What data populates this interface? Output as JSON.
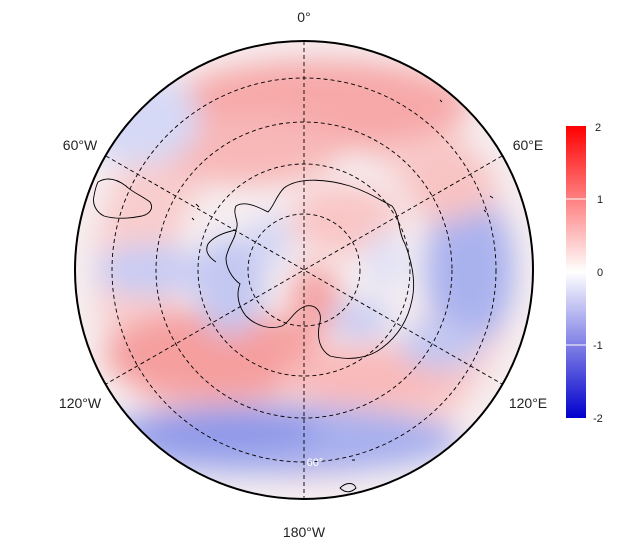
{
  "map": {
    "projection": "south-polar-stereographic",
    "longitude_labels": {
      "top": "0°",
      "upper_left": "60°W",
      "upper_right": "60°E",
      "lower_left": "120°W",
      "lower_right": "120°E",
      "bottom": "180°W"
    },
    "latitude_label": "60°",
    "field": "anomaly field, diverging red-white-blue",
    "colorbar": {
      "min": -2,
      "max": 2,
      "ticks": [
        "2",
        "1",
        "0",
        "-1",
        "-2"
      ],
      "colors": {
        "high": "#ff0000",
        "mid": "#ffffff",
        "low": "#0000cc"
      }
    }
  }
}
